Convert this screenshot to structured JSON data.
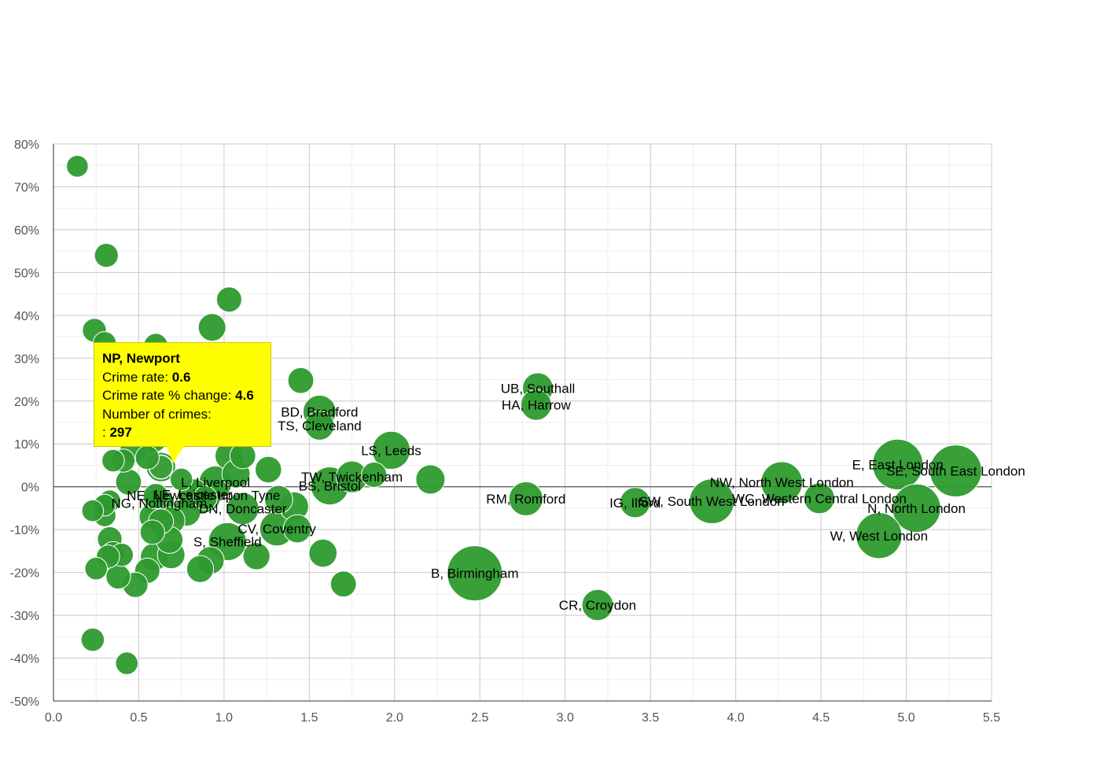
{
  "chart_data": {
    "type": "scatter",
    "title": "",
    "xlabel": "",
    "ylabel": "",
    "xlim": [
      0,
      5.5
    ],
    "ylim": [
      -50,
      80
    ],
    "x_ticks": [
      "0.0",
      "0.5",
      "1.0",
      "1.5",
      "2.0",
      "2.5",
      "3.0",
      "3.5",
      "4.0",
      "4.5",
      "5.0",
      "5.5"
    ],
    "y_ticks": [
      "-50%",
      "-40%",
      "-30%",
      "-20%",
      "-10%",
      "0%",
      "10%",
      "20%",
      "30%",
      "40%",
      "50%",
      "60%",
      "70%",
      "80%"
    ],
    "grid": true,
    "point_color": "#2e9a2e",
    "points": [
      {
        "label": "B, Birmingham",
        "x": 2.47,
        "y": -20.2,
        "size": 1.0
      },
      {
        "label": "CR, Croydon",
        "x": 3.19,
        "y": -27.6,
        "size": 0.26
      },
      {
        "label": "UB, Southall",
        "x": 2.84,
        "y": 23.0,
        "size": 0.25
      },
      {
        "label": "HA, Harrow",
        "x": 2.83,
        "y": 19.1,
        "size": 0.25
      },
      {
        "label": "RM, Romford",
        "x": 2.77,
        "y": -2.8,
        "size": 0.32
      },
      {
        "label": "IG, Ilford",
        "x": 3.41,
        "y": -3.7,
        "size": 0.24
      },
      {
        "label": "SW, South West London",
        "x": 3.86,
        "y": -3.4,
        "size": 0.62
      },
      {
        "label": "NW, North West London",
        "x": 4.27,
        "y": 1.0,
        "size": 0.52
      },
      {
        "label": "WC, Western Central London",
        "x": 4.49,
        "y": -2.7,
        "size": 0.25
      },
      {
        "label": "E, East London",
        "x": 4.95,
        "y": 5.2,
        "size": 0.82
      },
      {
        "label": "SE, South East London",
        "x": 5.29,
        "y": 3.7,
        "size": 0.87
      },
      {
        "label": "N, North London",
        "x": 5.06,
        "y": -5.0,
        "size": 0.74
      },
      {
        "label": "W, West London",
        "x": 4.84,
        "y": -11.4,
        "size": 0.66
      },
      {
        "label": "LS, Leeds",
        "x": 1.98,
        "y": 8.5,
        "size": 0.42
      },
      {
        "label": "BD, Bradford",
        "x": 1.56,
        "y": 17.5,
        "size": 0.3
      },
      {
        "label": "TS, Cleveland",
        "x": 1.56,
        "y": 14.3,
        "size": 0.22
      },
      {
        "label": "TW, Twickenham",
        "x": 1.75,
        "y": 2.3,
        "size": 0.27
      },
      {
        "label": "BS, Bristol",
        "x": 1.62,
        "y": 0.2,
        "size": 0.42
      },
      {
        "label": "CV, Coventry",
        "x": 1.31,
        "y": -9.8,
        "size": 0.33
      },
      {
        "label": "S, Sheffield",
        "x": 1.02,
        "y": -12.8,
        "size": 0.42
      },
      {
        "label": "DN, Doncaster",
        "x": 1.11,
        "y": -5.1,
        "size": 0.28
      },
      {
        "label": "NE, Newcastle upon Tyne",
        "x": 0.88,
        "y": -2.0,
        "size": 0.35
      },
      {
        "label": "L, Liverpool",
        "x": 0.95,
        "y": 1.0,
        "size": 0.3
      },
      {
        "label": "LE, Leicester",
        "x": 0.82,
        "y": -1.8,
        "size": 0.26
      },
      {
        "label": "NG, Nottingham",
        "x": 0.62,
        "y": -3.8,
        "size": 0.24
      },
      {
        "label": "",
        "x": 0.14,
        "y": 74.8,
        "size": 0.1
      },
      {
        "label": "",
        "x": 0.31,
        "y": 54.0,
        "size": 0.13
      },
      {
        "label": "",
        "x": 1.03,
        "y": 43.7,
        "size": 0.15
      },
      {
        "label": "",
        "x": 0.93,
        "y": 37.2,
        "size": 0.19
      },
      {
        "label": "",
        "x": 0.24,
        "y": 36.5,
        "size": 0.13
      },
      {
        "label": "",
        "x": 0.3,
        "y": 33.5,
        "size": 0.12
      },
      {
        "label": "",
        "x": 0.6,
        "y": 33.0,
        "size": 0.13
      },
      {
        "label": "",
        "x": 1.45,
        "y": 24.8,
        "size": 0.16
      },
      {
        "label": "",
        "x": 1.03,
        "y": 7.2,
        "size": 0.2
      },
      {
        "label": "",
        "x": 1.11,
        "y": 7.2,
        "size": 0.16
      },
      {
        "label": "",
        "x": 0.47,
        "y": 8.8,
        "size": 0.18
      },
      {
        "label": "",
        "x": 0.55,
        "y": 6.8,
        "size": 0.13
      },
      {
        "label": "",
        "x": 0.35,
        "y": 6.1,
        "size": 0.11
      },
      {
        "label": "",
        "x": 0.41,
        "y": 6.1,
        "size": 0.12
      },
      {
        "label": "",
        "x": 1.26,
        "y": 4.0,
        "size": 0.17
      },
      {
        "label": "",
        "x": 1.07,
        "y": 3.0,
        "size": 0.2
      },
      {
        "label": "",
        "x": 1.88,
        "y": 2.8,
        "size": 0.15
      },
      {
        "label": "",
        "x": 2.21,
        "y": 1.7,
        "size": 0.22
      },
      {
        "label": "",
        "x": 0.44,
        "y": 1.1,
        "size": 0.16
      },
      {
        "label": "",
        "x": 0.75,
        "y": 1.7,
        "size": 0.11
      },
      {
        "label": "",
        "x": 0.33,
        "y": -3.3,
        "size": 0.1
      },
      {
        "label": "",
        "x": 0.3,
        "y": -4.3,
        "size": 0.1
      },
      {
        "label": "",
        "x": 0.23,
        "y": -5.6,
        "size": 0.1
      },
      {
        "label": "",
        "x": 0.3,
        "y": -6.7,
        "size": 0.11
      },
      {
        "label": "",
        "x": 0.58,
        "y": -7.0,
        "size": 0.17
      },
      {
        "label": "",
        "x": 0.69,
        "y": -7.9,
        "size": 0.19
      },
      {
        "label": "",
        "x": 0.78,
        "y": -5.9,
        "size": 0.2
      },
      {
        "label": "",
        "x": 1.32,
        "y": -3.0,
        "size": 0.2
      },
      {
        "label": "",
        "x": 1.41,
        "y": -4.6,
        "size": 0.22
      },
      {
        "label": "",
        "x": 1.43,
        "y": -9.8,
        "size": 0.2
      },
      {
        "label": "",
        "x": 0.58,
        "y": -10.6,
        "size": 0.14
      },
      {
        "label": "",
        "x": 0.33,
        "y": -12.2,
        "size": 0.14
      },
      {
        "label": "",
        "x": 0.68,
        "y": -12.4,
        "size": 0.18
      },
      {
        "label": "",
        "x": 0.35,
        "y": -15.5,
        "size": 0.12
      },
      {
        "label": "",
        "x": 0.4,
        "y": -15.9,
        "size": 0.12
      },
      {
        "label": "",
        "x": 0.32,
        "y": -16.3,
        "size": 0.12
      },
      {
        "label": "",
        "x": 0.59,
        "y": -16.4,
        "size": 0.19
      },
      {
        "label": "",
        "x": 0.69,
        "y": -15.9,
        "size": 0.19
      },
      {
        "label": "",
        "x": 0.92,
        "y": -17.2,
        "size": 0.19
      },
      {
        "label": "",
        "x": 1.19,
        "y": -16.2,
        "size": 0.18
      },
      {
        "label": "",
        "x": 1.58,
        "y": -15.5,
        "size": 0.2
      },
      {
        "label": "",
        "x": 0.25,
        "y": -19.1,
        "size": 0.11
      },
      {
        "label": "",
        "x": 0.55,
        "y": -19.6,
        "size": 0.15
      },
      {
        "label": "",
        "x": 0.86,
        "y": -19.2,
        "size": 0.18
      },
      {
        "label": "",
        "x": 0.38,
        "y": -21.0,
        "size": 0.14
      },
      {
        "label": "",
        "x": 0.48,
        "y": -22.9,
        "size": 0.15
      },
      {
        "label": "",
        "x": 1.7,
        "y": -22.7,
        "size": 0.16
      },
      {
        "label": "",
        "x": 0.23,
        "y": -35.7,
        "size": 0.12
      },
      {
        "label": "",
        "x": 0.43,
        "y": -41.2,
        "size": 0.11
      },
      {
        "label": "",
        "x": 0.6,
        "y": -2.2,
        "size": 0.15
      },
      {
        "label": "",
        "x": 0.63,
        "y": -8.1,
        "size": 0.15
      },
      {
        "label": "",
        "x": 0.89,
        "y": -2.6,
        "size": 0.13
      },
      {
        "label": "",
        "x": 0.59,
        "y": 10.9,
        "size": 0.14
      },
      {
        "label": "NP, Newport",
        "x": 0.63,
        "y": 4.6,
        "size": 0.18,
        "highlighted": true
      }
    ],
    "tooltip": {
      "title": "NP, Newport",
      "crime_rate_label": "Crime rate: ",
      "crime_rate": "0.6",
      "change_label": "Crime rate % change: ",
      "change": "4.6",
      "count_label": "Number of crimes:",
      "count_prefix": ": ",
      "count": "297"
    }
  }
}
